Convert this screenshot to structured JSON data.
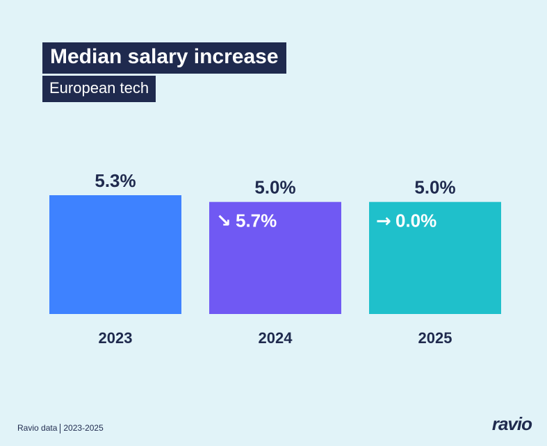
{
  "chart_data": {
    "type": "bar",
    "title": "Median salary increase",
    "subtitle": "European tech",
    "categories": [
      "2023",
      "2024",
      "2025"
    ],
    "values": [
      5.3,
      5.0,
      5.0
    ],
    "value_labels": [
      "5.3%",
      "5.0%",
      "5.0%"
    ],
    "changes": [
      null,
      {
        "icon": "arrow-down-right-icon",
        "glyph": "↘",
        "label": "5.7%"
      },
      {
        "icon": "arrow-right-icon",
        "glyph": "→",
        "label": "0.0%"
      }
    ],
    "colors": [
      "#3e82ff",
      "#7059f3",
      "#1fc0cb"
    ],
    "ylim": [
      0,
      5.3
    ],
    "grid": false,
    "xlabel": "",
    "ylabel": ""
  },
  "footer": {
    "source": "Ravio data",
    "range": "2023-2025"
  },
  "logo": "ravio"
}
